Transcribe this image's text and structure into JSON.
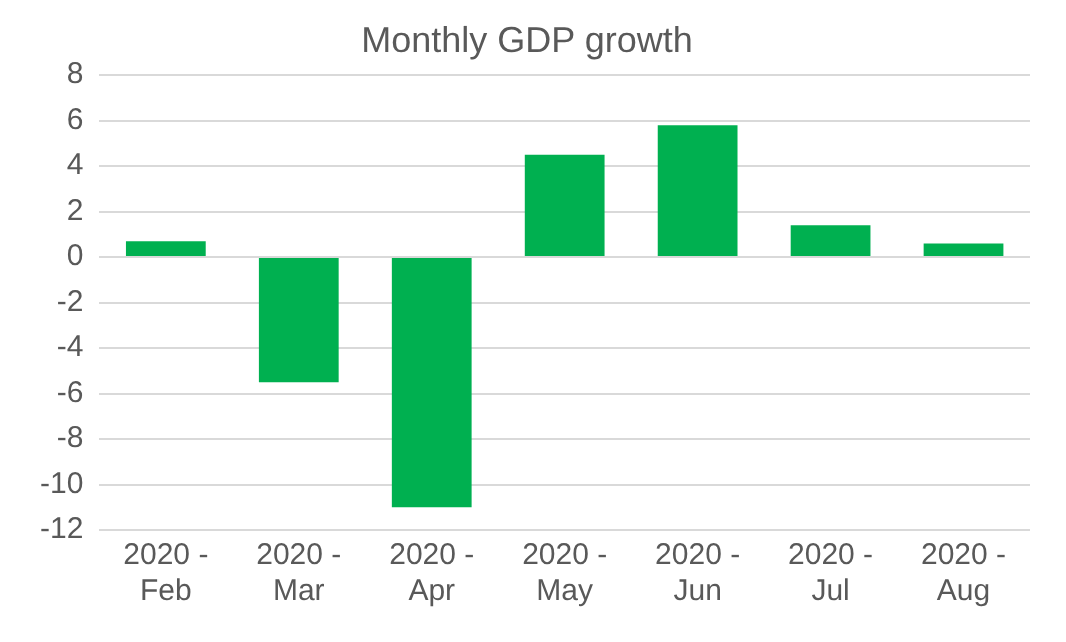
{
  "chart_data": {
    "type": "bar",
    "title": "Monthly GDP growth",
    "categories": [
      "2020 - Feb",
      "2020 - Mar",
      "2020 - Apr",
      "2020 - May",
      "2020 - Jun",
      "2020 - Jul",
      "2020 - Aug"
    ],
    "series": [
      {
        "color": "#00b050",
        "values": [
          0.7,
          -5.5,
          -11.0,
          4.5,
          5.8,
          1.4,
          0.6
        ]
      }
    ],
    "ylim": [
      -12,
      8
    ],
    "yticks": [
      -12,
      -10,
      -8,
      -6,
      -4,
      -2,
      0,
      2,
      4,
      6,
      8
    ],
    "grid": "y",
    "legend": false
  }
}
